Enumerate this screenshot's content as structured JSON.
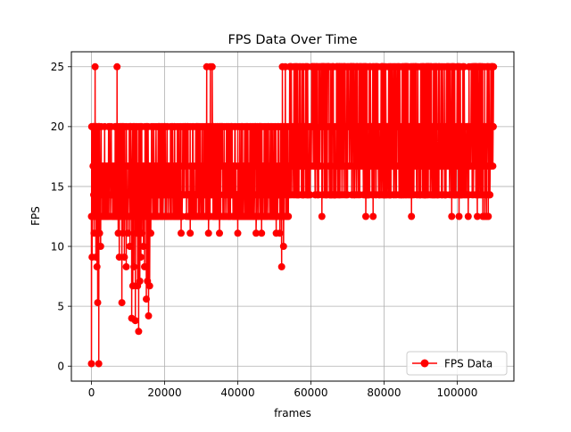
{
  "chart_data": {
    "type": "line",
    "title": "FPS Data Over Time",
    "xlabel": "frames",
    "ylabel": "FPS",
    "xlim": [
      -5500,
      115500
    ],
    "ylim": [
      -1.25,
      26.25
    ],
    "grid": true,
    "legend_position": "bottom-right",
    "x_ticks": [
      0,
      20000,
      40000,
      60000,
      80000,
      100000
    ],
    "x_tick_labels": [
      "0",
      "20000",
      "40000",
      "60000",
      "80000",
      "100000"
    ],
    "y_ticks": [
      0,
      5,
      10,
      15,
      20,
      25
    ],
    "y_tick_labels": [
      "0",
      "5",
      "10",
      "15",
      "20",
      "25"
    ],
    "series": [
      {
        "name": "FPS Data",
        "color": "#ff0000",
        "marker": "circle",
        "levels": [
          12.5,
          14.3,
          16.7,
          20.0,
          25.0
        ],
        "segments": [
          {
            "x_start": 0,
            "x_end": 54000,
            "y_min": 12.5,
            "y_max": 20.0
          },
          {
            "x_start": 54000,
            "x_end": 110000,
            "y_min": 14.3,
            "y_max": 25.0
          }
        ],
        "outliers": [
          [
            0,
            0.2
          ],
          [
            150,
            9.1
          ],
          [
            300,
            12.5
          ],
          [
            500,
            20.0
          ],
          [
            700,
            11.1
          ],
          [
            1000,
            25.0
          ],
          [
            1200,
            9.1
          ],
          [
            1500,
            8.3
          ],
          [
            1700,
            5.3
          ],
          [
            2000,
            0.2
          ],
          [
            2200,
            11.1
          ],
          [
            2500,
            10.0
          ],
          [
            3000,
            12.5
          ],
          [
            7000,
            25.0
          ],
          [
            7300,
            11.1
          ],
          [
            7600,
            9.1
          ],
          [
            8000,
            12.5
          ],
          [
            8300,
            5.3
          ],
          [
            8600,
            11.1
          ],
          [
            9000,
            9.1
          ],
          [
            9500,
            8.3
          ],
          [
            10000,
            11.1
          ],
          [
            10500,
            10.0
          ],
          [
            11000,
            4.0
          ],
          [
            11300,
            6.7
          ],
          [
            11600,
            8.3
          ],
          [
            12000,
            3.8
          ],
          [
            12300,
            11.1
          ],
          [
            12600,
            6.7
          ],
          [
            12900,
            2.9
          ],
          [
            13200,
            7.1
          ],
          [
            13500,
            9.1
          ],
          [
            13800,
            11.1
          ],
          [
            14200,
            10.0
          ],
          [
            14500,
            8.3
          ],
          [
            15000,
            5.6
          ],
          [
            15300,
            7.1
          ],
          [
            15600,
            4.2
          ],
          [
            15900,
            6.7
          ],
          [
            16200,
            11.1
          ],
          [
            24500,
            11.1
          ],
          [
            27000,
            11.1
          ],
          [
            31500,
            25.0
          ],
          [
            32000,
            11.1
          ],
          [
            32500,
            25.0
          ],
          [
            33000,
            25.0
          ],
          [
            35000,
            11.1
          ],
          [
            40000,
            11.1
          ],
          [
            45000,
            11.1
          ],
          [
            46500,
            11.1
          ],
          [
            50500,
            11.1
          ],
          [
            51500,
            11.1
          ],
          [
            52000,
            8.3
          ],
          [
            52200,
            25.0
          ],
          [
            52500,
            10.0
          ],
          [
            53000,
            25.0
          ],
          [
            53500,
            12.5
          ],
          [
            63000,
            12.5
          ],
          [
            75000,
            12.5
          ],
          [
            77000,
            12.5
          ],
          [
            87500,
            12.5
          ],
          [
            98500,
            12.5
          ],
          [
            100500,
            12.5
          ],
          [
            103000,
            12.5
          ],
          [
            105500,
            12.5
          ],
          [
            107000,
            12.5
          ],
          [
            107500,
            12.5
          ],
          [
            108000,
            12.5
          ],
          [
            108500,
            12.5
          ]
        ]
      }
    ]
  }
}
